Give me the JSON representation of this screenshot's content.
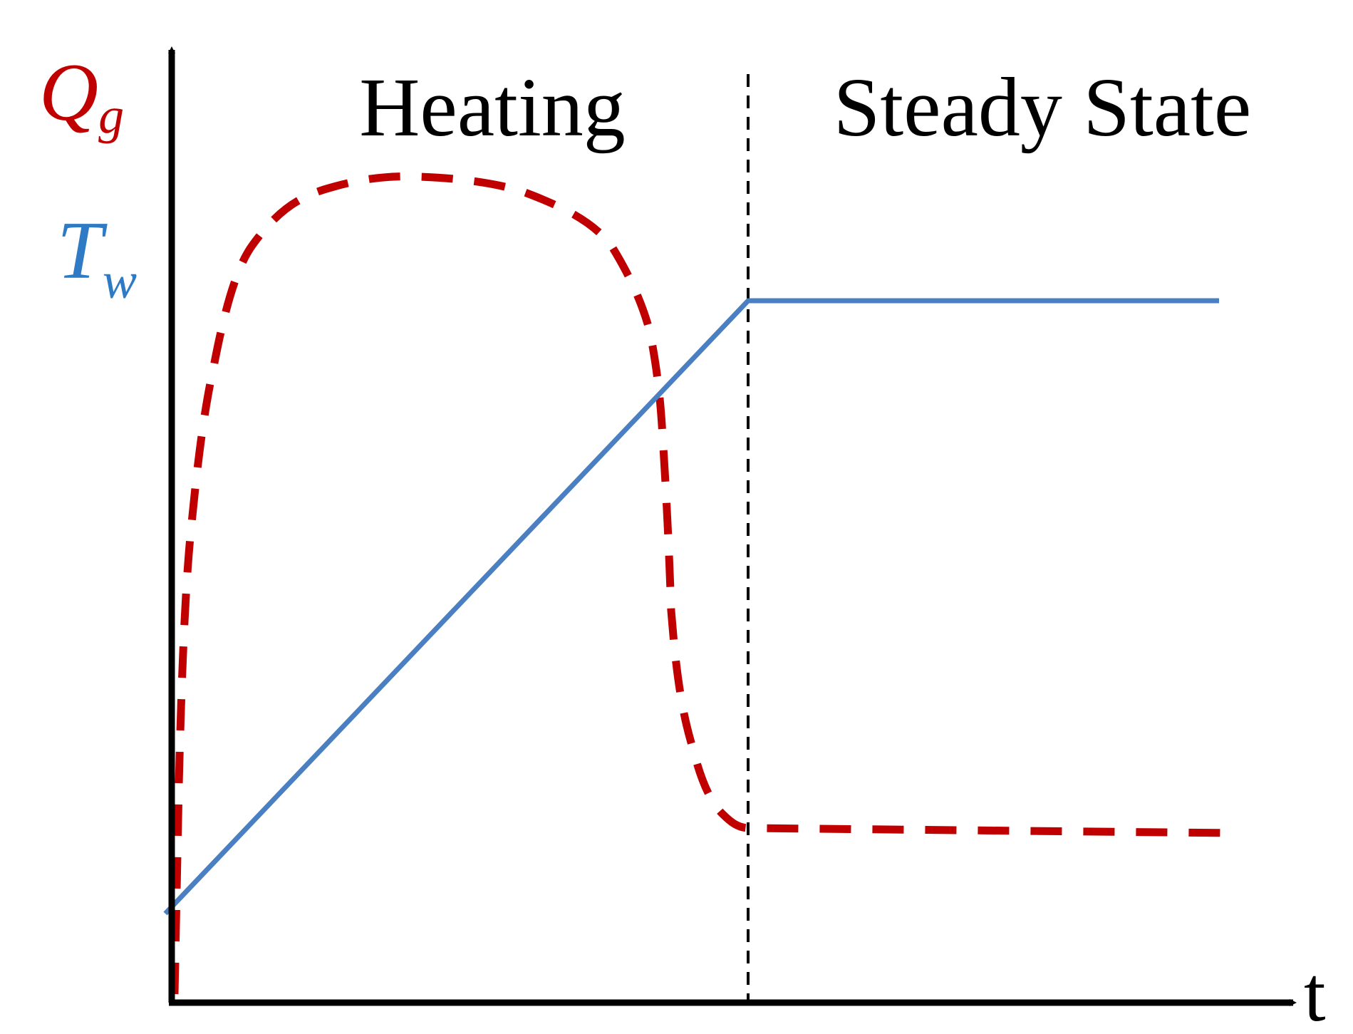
{
  "axis_labels": {
    "y_top": {
      "symbol": "Q",
      "subscript": "g"
    },
    "y_bottom": {
      "symbol": "T",
      "subscript": "w"
    },
    "x": "t"
  },
  "regions": [
    "Heating",
    "Steady State"
  ]
}
